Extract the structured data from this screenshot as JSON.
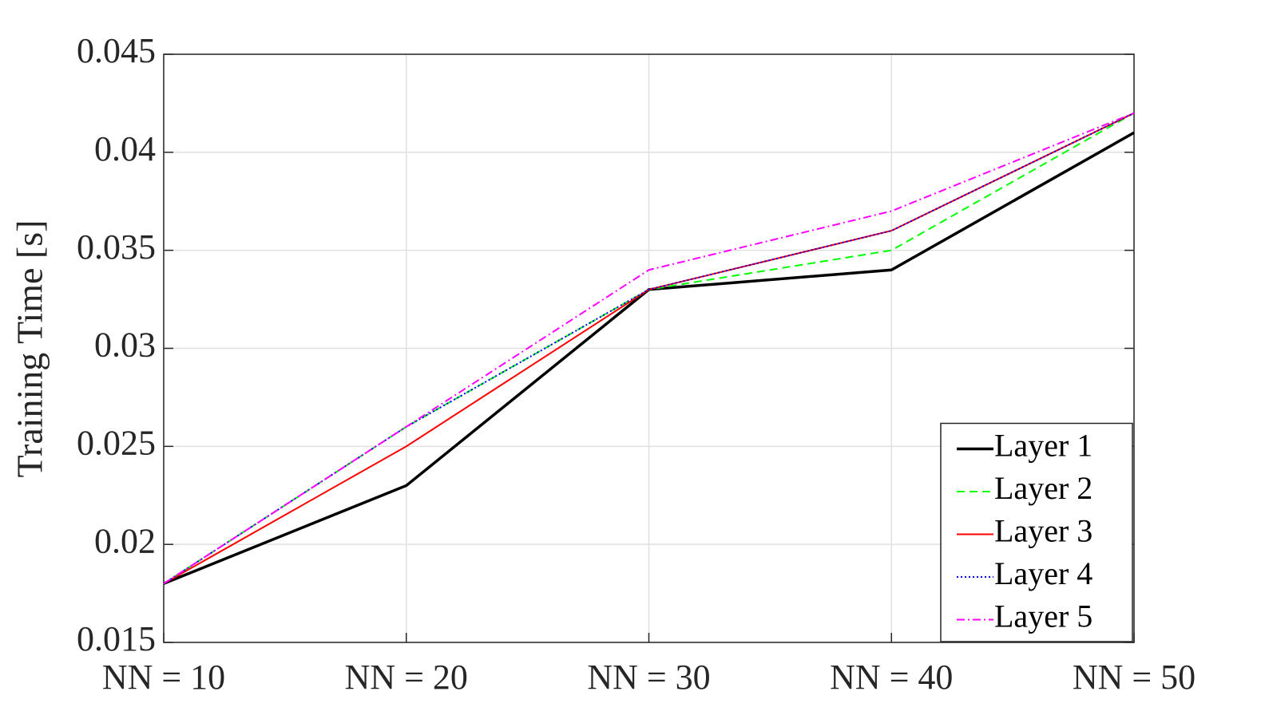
{
  "chart_data": {
    "type": "line",
    "ylabel": "Training Time [s]",
    "categories": [
      "NN = 10",
      "NN = 20",
      "NN = 30",
      "NN = 40",
      "NN = 50"
    ],
    "series": [
      {
        "name": "Layer 1",
        "color": "#000000",
        "line_style": "solid",
        "values": [
          0.018,
          0.023,
          0.033,
          0.034,
          0.041
        ]
      },
      {
        "name": "Layer 2",
        "color": "#00ff00",
        "line_style": "dashed",
        "values": [
          0.018,
          0.026,
          0.033,
          0.035,
          0.042
        ]
      },
      {
        "name": "Layer 3",
        "color": "#ff0000",
        "line_style": "solid",
        "values": [
          0.018,
          0.025,
          0.033,
          0.036,
          0.042
        ]
      },
      {
        "name": "Layer 4",
        "color": "#0000ff",
        "line_style": "dotted",
        "values": [
          0.018,
          0.026,
          0.033,
          0.036,
          0.042
        ]
      },
      {
        "name": "Layer 5",
        "color": "#ff00ff",
        "line_style": "dashdot",
        "values": [
          0.018,
          0.026,
          0.034,
          0.037,
          0.042
        ]
      }
    ],
    "ylim": [
      0.015,
      0.045
    ],
    "yticks": [
      0.015,
      0.02,
      0.025,
      0.03,
      0.035,
      0.04,
      0.045
    ],
    "grid": true,
    "legend": "lower right"
  }
}
